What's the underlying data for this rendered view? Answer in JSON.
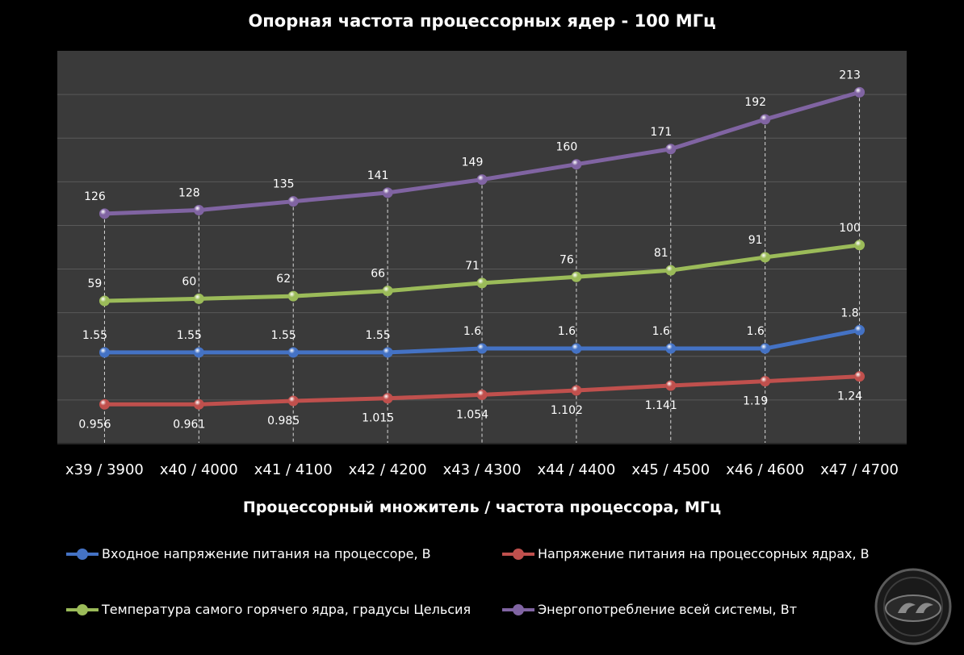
{
  "chart_data": {
    "type": "line",
    "title": "Опорная частота процессорных ядер - 100 МГц",
    "xlabel": "Процессорный множитель / частота процессора, МГц",
    "ylabel": "",
    "categories": [
      "x39 / 3900",
      "x40 / 4000",
      "x41 / 4100",
      "x42 / 4200",
      "x43 / 4300",
      "x44 / 4400",
      "x45 / 4500",
      "x46 / 4600",
      "x47 / 4700"
    ],
    "grid": true,
    "legend_position": "bottom",
    "series": [
      {
        "name": "Входное напряжение питания на процессоре, В",
        "color": "#4472c4",
        "values": [
          1.55,
          1.55,
          1.55,
          1.55,
          1.6,
          1.6,
          1.6,
          1.6,
          1.8
        ],
        "labels": [
          "1.55",
          "1.55",
          "1.55",
          "1.55",
          "1.6",
          "1.6",
          "1.6",
          "1.6",
          "1.8"
        ],
        "plot_level": [
          2.09,
          2.09,
          2.09,
          2.09,
          2.18,
          2.18,
          2.18,
          2.18,
          2.6
        ],
        "label_position": "above"
      },
      {
        "name": "Напряжение питания на процессорных ядрах, В",
        "color": "#c0504d",
        "values": [
          0.956,
          0.961,
          0.985,
          1.015,
          1.054,
          1.102,
          1.141,
          1.19,
          1.24
        ],
        "labels": [
          "0.956",
          "0.961",
          "0.985",
          "1.015",
          "1.054",
          "1.102",
          "1.141",
          "1.19",
          "1.24"
        ],
        "plot_level": [
          0.9,
          0.9,
          0.98,
          1.04,
          1.12,
          1.22,
          1.33,
          1.43,
          1.54
        ],
        "label_position": "below"
      },
      {
        "name": "Температура самого горячего ядра, градусы Цельсия",
        "color": "#9bbb59",
        "values": [
          59,
          60,
          62,
          66,
          71,
          76,
          81,
          91,
          100
        ],
        "labels": [
          "59",
          "60",
          "62",
          "66",
          "71",
          "76",
          "81",
          "91",
          "100"
        ],
        "plot_level": [
          3.27,
          3.32,
          3.38,
          3.5,
          3.68,
          3.82,
          3.97,
          4.27,
          4.55
        ],
        "label_position": "above"
      },
      {
        "name": "Энергопотребление всей системы, Вт",
        "color": "#8064a2",
        "values": [
          126,
          128,
          135,
          141,
          149,
          160,
          171,
          192,
          213
        ],
        "labels": [
          "126",
          "128",
          "135",
          "141",
          "149",
          "160",
          "171",
          "192",
          "213"
        ],
        "plot_level": [
          5.27,
          5.35,
          5.55,
          5.75,
          6.05,
          6.4,
          6.75,
          7.43,
          8.05
        ],
        "label_position": "above"
      }
    ],
    "plot_level_range": [
      0,
      9
    ]
  },
  "legend": {
    "items": [
      {
        "label": "Входное напряжение питания на процессоре, В",
        "color": "#4472c4"
      },
      {
        "label": "Напряжение питания на процессорных ядрах, В",
        "color": "#c0504d"
      },
      {
        "label": "Температура самого горячего ядра, градусы Цельсия",
        "color": "#9bbb59"
      },
      {
        "label": "Энергопотребление всей системы, Вт",
        "color": "#8064a2"
      }
    ]
  },
  "colors": {
    "background": "#000000",
    "plot_area": "#3a3a3a",
    "grid": "#595959",
    "text": "#ffffff"
  }
}
